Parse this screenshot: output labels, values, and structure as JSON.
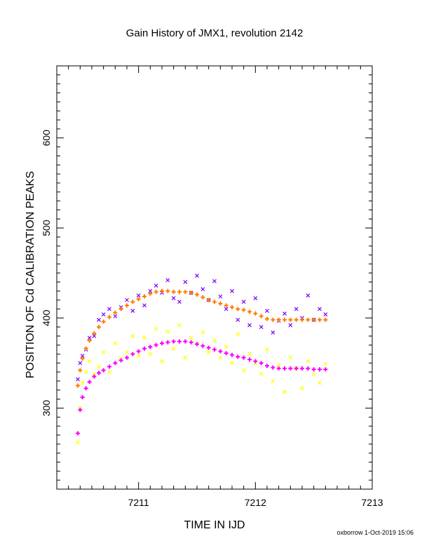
{
  "chart_data": {
    "type": "scatter",
    "title": "Gain History of JMX1, revolution 2142",
    "xlabel": "TIME IN IJD",
    "ylabel": "POSITION OF Cd CALIBRATION PEAKS",
    "xlim": [
      7210.3,
      7213.0
    ],
    "ylim": [
      210,
      680
    ],
    "xticks": [
      "7211",
      "7212",
      "7213"
    ],
    "xtick_values": [
      7211,
      7212,
      7213
    ],
    "yticks": [
      "300",
      "400",
      "500",
      "600"
    ],
    "ytick_values": [
      300,
      400,
      500,
      600
    ],
    "grid": false,
    "series": [
      {
        "marker": "x",
        "color": "#7f00ff",
        "x": [
          7210.48,
          7210.5,
          7210.52,
          7210.55,
          7210.58,
          7210.62,
          7210.66,
          7210.7,
          7210.75,
          7210.8,
          7210.85,
          7210.9,
          7210.95,
          7211.0,
          7211.05,
          7211.1,
          7211.15,
          7211.2,
          7211.25,
          7211.3,
          7211.35,
          7211.4,
          7211.45,
          7211.5,
          7211.55,
          7211.6,
          7211.65,
          7211.7,
          7211.75,
          7211.8,
          7211.85,
          7211.9,
          7211.95,
          7212.0,
          7212.05,
          7212.1,
          7212.15,
          7212.2,
          7212.25,
          7212.3,
          7212.35,
          7212.4,
          7212.45,
          7212.5,
          7212.55,
          7212.6
        ],
        "y": [
          332,
          350,
          358,
          365,
          378,
          380,
          398,
          404,
          410,
          402,
          412,
          420,
          408,
          425,
          414,
          430,
          436,
          428,
          442,
          422,
          418,
          440,
          428,
          447,
          432,
          420,
          441,
          424,
          410,
          430,
          398,
          418,
          392,
          422,
          390,
          408,
          384,
          397,
          405,
          392,
          410,
          400,
          425,
          398,
          410,
          404
        ]
      },
      {
        "marker": "x",
        "color": "#ffff00",
        "x": [
          7210.48,
          7210.5,
          7210.52,
          7210.55,
          7210.58,
          7210.62,
          7210.66,
          7210.7,
          7210.75,
          7210.8,
          7210.85,
          7210.9,
          7210.95,
          7211.0,
          7211.05,
          7211.1,
          7211.15,
          7211.2,
          7211.25,
          7211.3,
          7211.35,
          7211.4,
          7211.45,
          7211.5,
          7211.55,
          7211.6,
          7211.65,
          7211.7,
          7211.75,
          7211.8,
          7211.85,
          7211.9,
          7211.95,
          7212.0,
          7212.05,
          7212.1,
          7212.15,
          7212.2,
          7212.25,
          7212.3,
          7212.35,
          7212.4,
          7212.45,
          7212.5,
          7212.55,
          7212.6
        ],
        "y": [
          262,
          300,
          328,
          340,
          352,
          338,
          346,
          362,
          340,
          372,
          355,
          362,
          380,
          358,
          378,
          360,
          388,
          352,
          385,
          366,
          392,
          356,
          378,
          372,
          384,
          362,
          375,
          356,
          368,
          350,
          382,
          342,
          360,
          350,
          338,
          365,
          330,
          348,
          318,
          356,
          344,
          322,
          352,
          338,
          328,
          349
        ]
      },
      {
        "marker": "+",
        "color": "#ff00ff",
        "x": [
          7210.48,
          7210.5,
          7210.52,
          7210.55,
          7210.58,
          7210.62,
          7210.66,
          7210.7,
          7210.75,
          7210.8,
          7210.85,
          7210.9,
          7210.95,
          7211.0,
          7211.05,
          7211.1,
          7211.15,
          7211.2,
          7211.25,
          7211.3,
          7211.35,
          7211.4,
          7211.45,
          7211.5,
          7211.55,
          7211.6,
          7211.65,
          7211.7,
          7211.75,
          7211.8,
          7211.85,
          7211.9,
          7211.95,
          7212.0,
          7212.05,
          7212.1,
          7212.15,
          7212.2,
          7212.25,
          7212.3,
          7212.35,
          7212.4,
          7212.45,
          7212.5,
          7212.55,
          7212.6
        ],
        "y": [
          272,
          298,
          312,
          322,
          329,
          335,
          339,
          342,
          346,
          350,
          353,
          356,
          360,
          363,
          366,
          368,
          370,
          372,
          373,
          374,
          374,
          374,
          373,
          371,
          369,
          367,
          365,
          363,
          361,
          359,
          357,
          356,
          354,
          352,
          350,
          347,
          345,
          344,
          344,
          344,
          344,
          344,
          344,
          343,
          343,
          343
        ]
      },
      {
        "marker": "+",
        "color": "#ff7f00",
        "x": [
          7210.48,
          7210.5,
          7210.52,
          7210.55,
          7210.58,
          7210.62,
          7210.66,
          7210.7,
          7210.75,
          7210.8,
          7210.85,
          7210.9,
          7210.95,
          7211.0,
          7211.05,
          7211.1,
          7211.15,
          7211.2,
          7211.25,
          7211.3,
          7211.35,
          7211.4,
          7211.45,
          7211.5,
          7211.55,
          7211.6,
          7211.65,
          7211.7,
          7211.75,
          7211.8,
          7211.85,
          7211.9,
          7211.95,
          7212.0,
          7212.05,
          7212.1,
          7212.15,
          7212.2,
          7212.25,
          7212.3,
          7212.35,
          7212.4,
          7212.45,
          7212.5,
          7212.55,
          7212.6
        ],
        "y": [
          325,
          342,
          355,
          366,
          375,
          383,
          390,
          396,
          401,
          406,
          410,
          414,
          418,
          421,
          424,
          427,
          429,
          430,
          430,
          429,
          429,
          429,
          428,
          426,
          423,
          420,
          418,
          416,
          414,
          412,
          410,
          409,
          407,
          405,
          402,
          399,
          398,
          398,
          398,
          398,
          398,
          398,
          398,
          398,
          398,
          398
        ]
      }
    ]
  },
  "footer": "oxborrow  1-Oct-2019 15:06"
}
